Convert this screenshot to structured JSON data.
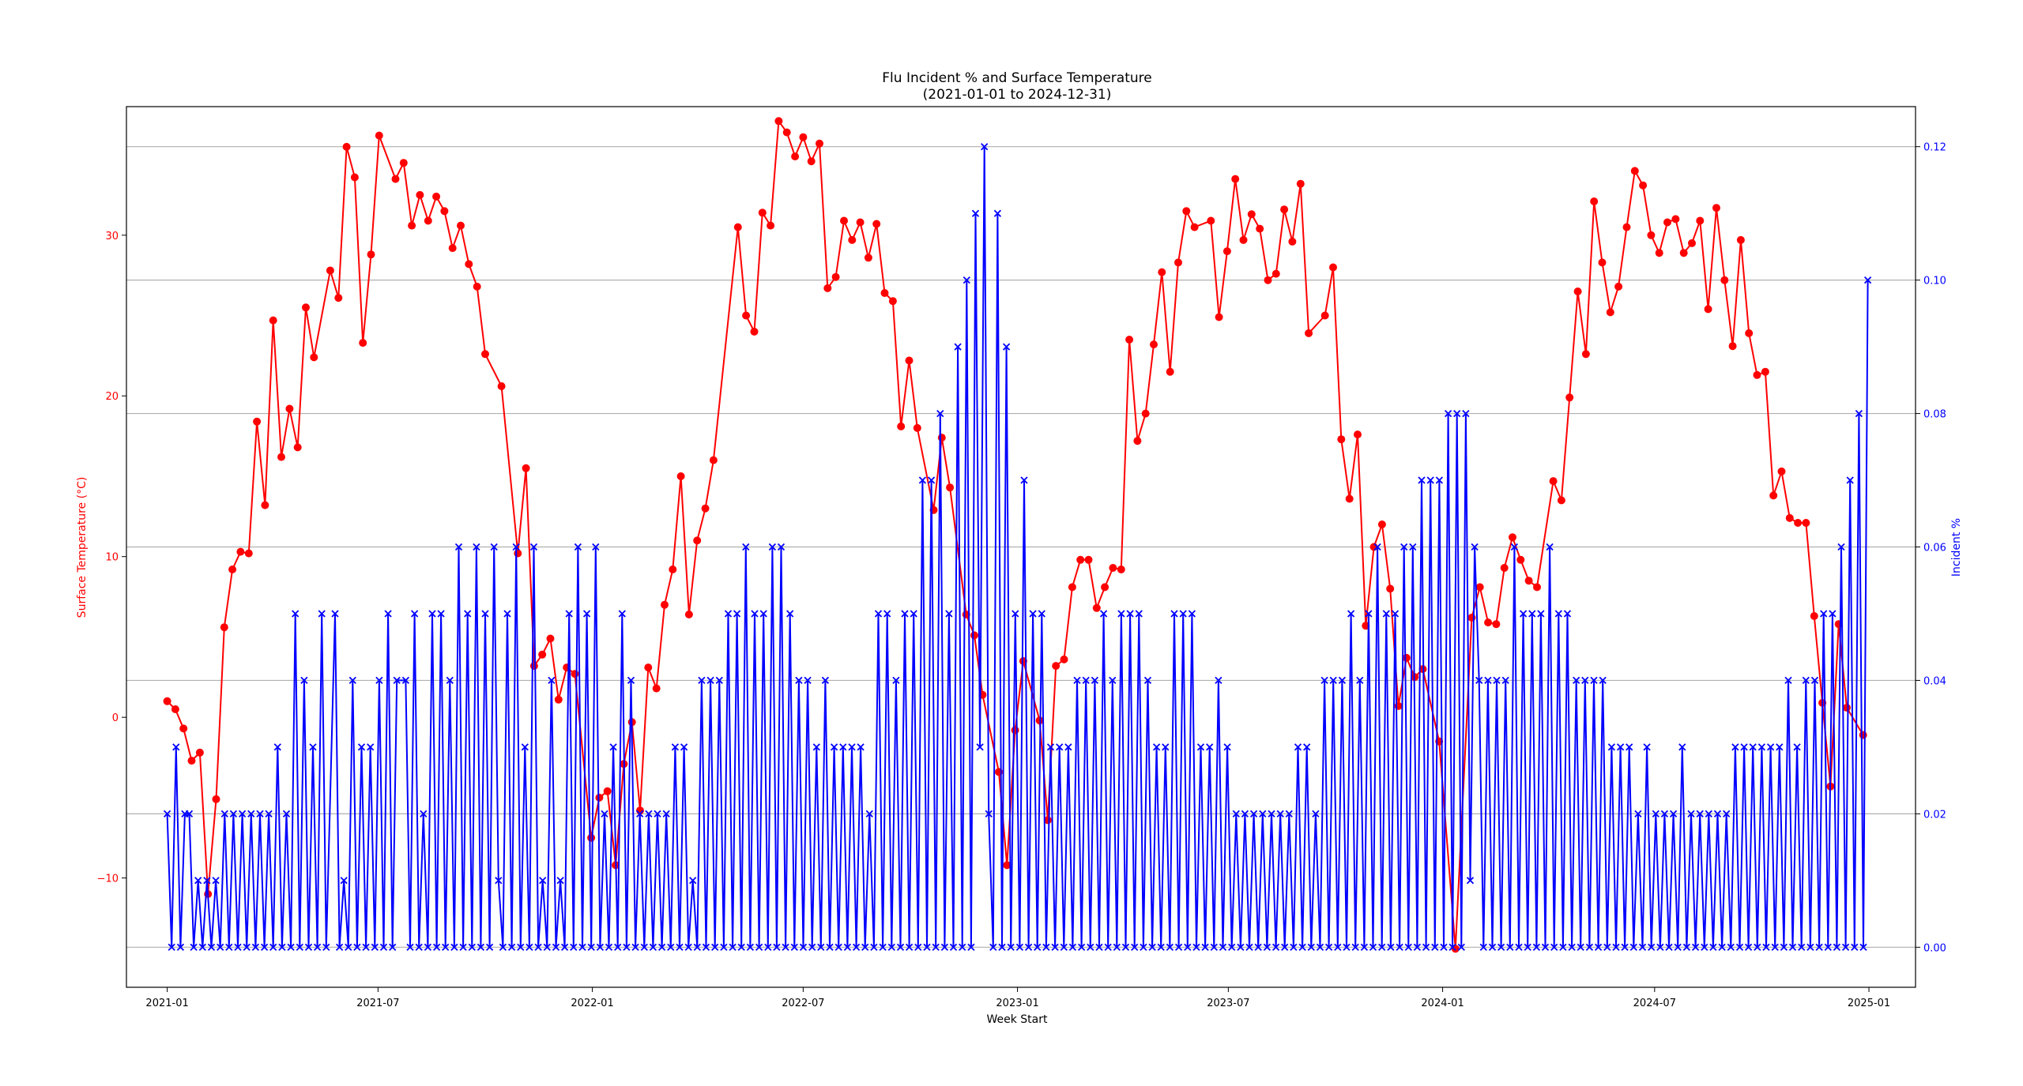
{
  "chart_data": {
    "type": "line",
    "title_line1": "Flu Incident % and Surface Temperature",
    "title_line2": "(2021-01-01 to 2024-12-31)",
    "xlabel": "Week Start",
    "ylabel_left": "Surface Temperature (°C)",
    "ylabel_right": "Incident %",
    "x_ticks": [
      "2021-01",
      "2021-07",
      "2022-01",
      "2022-07",
      "2023-01",
      "2023-07",
      "2024-01",
      "2024-07",
      "2025-01"
    ],
    "xlim": [
      "2020-11-27",
      "2025-02-10"
    ],
    "ylim_left": [
      -16.8,
      38.0
    ],
    "ylim_right": [
      -0.006,
      0.126
    ],
    "y_ticks_left": [
      -10,
      0,
      10,
      20,
      30
    ],
    "y_ticks_right": [
      0.0,
      0.02,
      0.04,
      0.06,
      0.08,
      0.1,
      0.12
    ],
    "grid": "horizontal lines at right-axis ticks",
    "colors": {
      "temperature": "#ff0000",
      "incident": "#0000ff"
    },
    "series": [
      {
        "axis": "left",
        "marker": "circle",
        "start_date": "2021-01-01",
        "interval_days": 7,
        "values": [
          1.0,
          0.5,
          -0.7,
          -2.7,
          -2.2,
          -11,
          -5.1,
          5.6,
          9.2,
          10.3,
          10.2,
          18.4,
          13.2,
          24.7,
          16.2,
          19.2,
          16.8,
          25.5,
          22.4,
          null,
          27.8,
          26.1,
          35.5,
          33.6,
          23.3,
          28.8,
          36.2,
          null,
          33.5,
          34.5,
          30.6,
          32.5,
          30.9,
          32.4,
          31.5,
          29.2,
          30.6,
          28.2,
          26.8,
          22.6,
          null,
          20.6,
          null,
          10.2,
          15.5,
          3.2,
          3.9,
          4.9,
          1.1,
          3.1,
          2.7,
          null,
          -7.5,
          -5.0,
          -4.6,
          -9.2,
          -2.9,
          -0.3,
          -5.8,
          3.1,
          1.8,
          7.0,
          9.2,
          15.0,
          6.4,
          11.0,
          13.0,
          16.0,
          null,
          null,
          30.5,
          25.0,
          24.0,
          31.4,
          30.6,
          37.1,
          36.4,
          34.9,
          36.1,
          34.6,
          35.7,
          26.7,
          27.4,
          30.9,
          29.7,
          30.8,
          28.6,
          30.7,
          26.4,
          25.9,
          18.1,
          22.2,
          18.0,
          null,
          12.9,
          17.4,
          14.3,
          null,
          6.4,
          5.1,
          1.4,
          null,
          -3.4,
          -9.2,
          -0.8,
          3.5,
          null,
          -0.2,
          -6.4,
          3.2,
          3.6,
          8.1,
          9.8,
          9.8,
          6.8,
          8.1,
          9.3,
          9.2,
          23.5,
          17.2,
          18.9,
          23.2,
          27.7,
          21.5,
          28.3,
          31.5,
          30.5,
          null,
          30.9,
          24.9,
          29.0,
          33.5,
          29.7,
          31.3,
          30.4,
          27.2,
          27.6,
          31.6,
          29.6,
          33.2,
          23.9,
          null,
          25.0,
          28.0,
          17.3,
          13.6,
          17.6,
          5.7,
          10.6,
          12.0,
          8.0,
          0.7,
          3.7,
          2.5,
          3.0,
          null,
          -1.5,
          null,
          -14.4,
          null,
          6.2,
          8.1,
          5.9,
          5.8,
          9.3,
          11.2,
          9.8,
          8.5,
          8.1,
          null,
          14.7,
          13.5,
          19.9,
          26.5,
          22.6,
          32.1,
          28.3,
          25.2,
          26.8,
          30.5,
          34.0,
          33.1,
          30.0,
          28.9,
          30.8,
          31.0,
          28.9,
          29.5,
          30.9,
          25.4,
          31.7,
          27.2,
          23.1,
          29.7,
          23.9,
          21.3,
          21.5,
          13.8,
          15.3,
          12.4,
          12.1,
          12.1,
          6.3,
          0.9,
          -4.3,
          5.8,
          0.6,
          null,
          -1.1
        ]
      },
      {
        "axis": "right",
        "marker": "x",
        "start_date": "2021-01-01",
        "interval_days": 7,
        "values": [
          0.02,
          0,
          0.03,
          0,
          0.02,
          0.02,
          0,
          0.01,
          0,
          0.01,
          0,
          0.01,
          0,
          0.02,
          0,
          0.02,
          0,
          0.02,
          0,
          0.02,
          0,
          0.02,
          0,
          0.02,
          0,
          0.03,
          0,
          0.02,
          0,
          0.05,
          0,
          0.04,
          0,
          0.03,
          0,
          0.05,
          0,
          null,
          0.05,
          0,
          0.01,
          0,
          0.04,
          0,
          0.03,
          0,
          0.03,
          0,
          0.04,
          0,
          0.05,
          0,
          0.04,
          null,
          0.04,
          0,
          0.05,
          0,
          0.02,
          0,
          0.05,
          0,
          0.05,
          0,
          0.04,
          0,
          0.06,
          0,
          0.05,
          0,
          0.06,
          0,
          0.05,
          0,
          0.06,
          0.01,
          0,
          0.05,
          0,
          0.06,
          0,
          0.03,
          0,
          0.06,
          0,
          0.01,
          0,
          0.04,
          0,
          0.01,
          0,
          0.05,
          0,
          0.06,
          0,
          0.05,
          0,
          0.06,
          0,
          0.02,
          0,
          0.03,
          0,
          0.05,
          0,
          0.04,
          0,
          0.02,
          0,
          0.02,
          0,
          0.02,
          0,
          0.02,
          0,
          0.03,
          0,
          0.03,
          0,
          0.01,
          0,
          0.04,
          0,
          0.04,
          0,
          0.04,
          0,
          0.05,
          0,
          0.05,
          0,
          0.06,
          0,
          0.05,
          0,
          0.05,
          0,
          0.06,
          0,
          0.06,
          0,
          0.05,
          0,
          0.04,
          0,
          0.04,
          0,
          0.03,
          0,
          0.04,
          0,
          0.03,
          0,
          0.03,
          0,
          0.03,
          0,
          0.03,
          0,
          0.02,
          0,
          0.05,
          0,
          0.05,
          0,
          0.04,
          0,
          0.05,
          0,
          0.05,
          0,
          0.07,
          0,
          0.07,
          0,
          0.08,
          0,
          0.05,
          0,
          0.09,
          0,
          0.1,
          0,
          0.11,
          0.03,
          0.12,
          0.02,
          0,
          0.11,
          0,
          0.09,
          0,
          0.05,
          0,
          0.07,
          0,
          0.05,
          0,
          0.05,
          0,
          0.03,
          0,
          0.03,
          0,
          0.03,
          0,
          0.04,
          0,
          0.04,
          0,
          0.04,
          0,
          0.05,
          0,
          0.04,
          0,
          0.05,
          0,
          0.05,
          0,
          0.05,
          0,
          0.04,
          0,
          0.03,
          0,
          0.03,
          0,
          0.05,
          0,
          0.05,
          0,
          0.05,
          0,
          0.03,
          0,
          0.03,
          0,
          0.04,
          0,
          0.03,
          0,
          0.02,
          0,
          0.02,
          0,
          0.02,
          0,
          0.02,
          0,
          0.02,
          0,
          0.02,
          0,
          0.02,
          0,
          0.03,
          0,
          0.03,
          0,
          0.02,
          0,
          0.04,
          0,
          0.04,
          0,
          0.04,
          0,
          0.05,
          0,
          0.04,
          0,
          0.05,
          0,
          0.06,
          0,
          0.05,
          0,
          0.05,
          0,
          0.06,
          0,
          0.06,
          0,
          0.07,
          0,
          0.07,
          0,
          0.07,
          0,
          0.08,
          0,
          0.08,
          0,
          0.08,
          0.01,
          0.06,
          0.04,
          0,
          0.04,
          0,
          0.04,
          0,
          0.04,
          0,
          0.06,
          0,
          0.05,
          0,
          0.05,
          0,
          0.05,
          0,
          0.06,
          0,
          0.05,
          0,
          0.05,
          0,
          0.04,
          0,
          0.04,
          0,
          0.04,
          0,
          0.04,
          0,
          0.03,
          0,
          0.03,
          0,
          0.03,
          0,
          0.02,
          0,
          0.03,
          0,
          0.02,
          0,
          0.02,
          0,
          0.02,
          0,
          0.03,
          0,
          0.02,
          0,
          0.02,
          0,
          0.02,
          0,
          0.02,
          0,
          0.02,
          0,
          0.03,
          0,
          0.03,
          0,
          0.03,
          0,
          0.03,
          0,
          0.03,
          0,
          0.03,
          0,
          0.04,
          0,
          0.03,
          0,
          0.04,
          0,
          0.04,
          0,
          0.05,
          0,
          0.05,
          0,
          0.06,
          0,
          0.07,
          0,
          0.08,
          0,
          0.1
        ]
      }
    ]
  }
}
